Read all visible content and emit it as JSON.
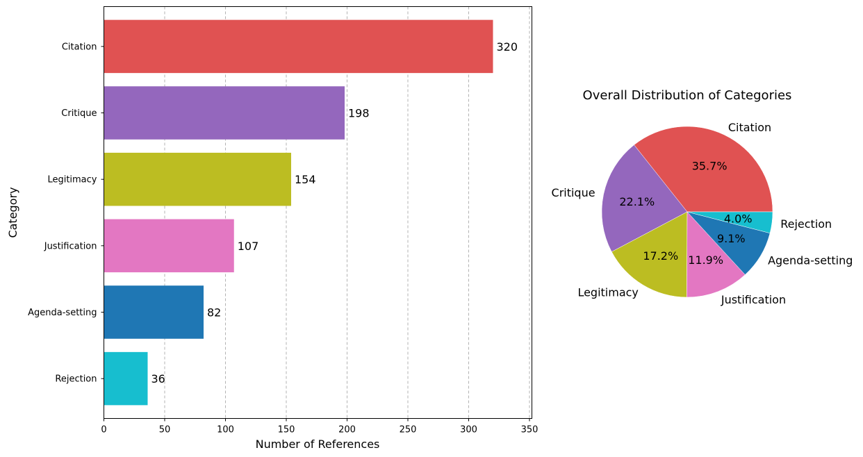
{
  "chart_data": [
    {
      "type": "bar",
      "orientation": "horizontal",
      "categories": [
        "Citation",
        "Critique",
        "Legitimacy",
        "Justification",
        "Agenda-setting",
        "Rejection"
      ],
      "values": [
        320,
        198,
        154,
        107,
        82,
        36
      ],
      "value_labels": [
        "320",
        "198",
        "154",
        "107",
        "82",
        "36"
      ],
      "colors": [
        "#e05252",
        "#9467bd",
        "#bcbd22",
        "#e377c2",
        "#1f77b4",
        "#17becf"
      ],
      "xlabel": "Number of References",
      "ylabel": "Category",
      "xlim": [
        0,
        352
      ],
      "xticks": [
        0,
        50,
        100,
        150,
        200,
        250,
        300,
        350
      ],
      "xtick_labels": [
        "0",
        "50",
        "100",
        "150",
        "200",
        "250",
        "300",
        "350"
      ],
      "grid": "x-dashed"
    },
    {
      "type": "pie",
      "title": "Overall Distribution of Categories",
      "labels": [
        "Citation",
        "Critique",
        "Legitimacy",
        "Justification",
        "Agenda-setting",
        "Rejection"
      ],
      "values": [
        320,
        198,
        154,
        107,
        82,
        36
      ],
      "percent_labels": [
        "35.7%",
        "22.1%",
        "17.2%",
        "11.9%",
        "9.1%",
        "4.0%"
      ],
      "colors": [
        "#e05252",
        "#9467bd",
        "#bcbd22",
        "#e377c2",
        "#1f77b4",
        "#17becf"
      ],
      "start_angle": 0,
      "direction": "counterclockwise"
    }
  ]
}
